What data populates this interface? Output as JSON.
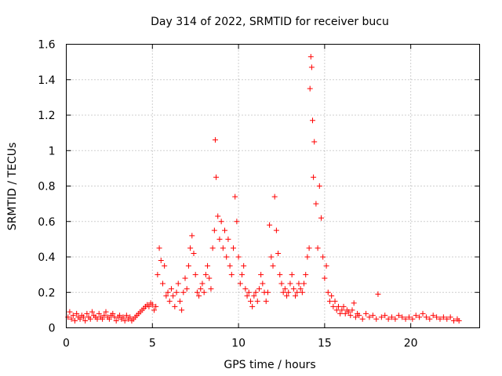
{
  "chart_data": {
    "type": "scatter",
    "title": "Day 314 of 2022, SRMTID for receiver bucu",
    "xlabel": "GPS time / hours",
    "ylabel": "SRMTID / TECUs",
    "xlim": [
      0,
      24
    ],
    "ylim": [
      0,
      1.6
    ],
    "xticks": [
      0,
      5,
      10,
      15,
      20
    ],
    "xtick_labels": [
      "0",
      "5",
      "10",
      "15",
      "20"
    ],
    "yticks": [
      0,
      0.2,
      0.4,
      0.6,
      0.8,
      1,
      1.2,
      1.4,
      1.6
    ],
    "ytick_labels": [
      "0",
      "0.2",
      "0.4",
      "0.6",
      "0.8",
      "1",
      "1.2",
      "1.4",
      "1.6"
    ],
    "grid": true,
    "marker": "+",
    "color": "#ff0000",
    "series": [
      {
        "name": "SRMTID",
        "points": [
          [
            0.1,
            0.06
          ],
          [
            0.2,
            0.09
          ],
          [
            0.3,
            0.05
          ],
          [
            0.4,
            0.07
          ],
          [
            0.5,
            0.04
          ],
          [
            0.6,
            0.08
          ],
          [
            0.7,
            0.06
          ],
          [
            0.8,
            0.05
          ],
          [
            0.9,
            0.07
          ],
          [
            1.0,
            0.06
          ],
          [
            1.1,
            0.04
          ],
          [
            1.2,
            0.08
          ],
          [
            1.3,
            0.06
          ],
          [
            1.4,
            0.05
          ],
          [
            1.5,
            0.09
          ],
          [
            1.6,
            0.07
          ],
          [
            1.7,
            0.06
          ],
          [
            1.8,
            0.05
          ],
          [
            1.9,
            0.08
          ],
          [
            2.0,
            0.06
          ],
          [
            2.1,
            0.05
          ],
          [
            2.2,
            0.07
          ],
          [
            2.3,
            0.09
          ],
          [
            2.4,
            0.06
          ],
          [
            2.5,
            0.05
          ],
          [
            2.6,
            0.07
          ],
          [
            2.7,
            0.08
          ],
          [
            2.8,
            0.06
          ],
          [
            2.9,
            0.04
          ],
          [
            3.0,
            0.06
          ],
          [
            3.1,
            0.07
          ],
          [
            3.2,
            0.05
          ],
          [
            3.3,
            0.06
          ],
          [
            3.4,
            0.04
          ],
          [
            3.5,
            0.07
          ],
          [
            3.6,
            0.05
          ],
          [
            3.7,
            0.06
          ],
          [
            3.8,
            0.04
          ],
          [
            3.9,
            0.05
          ],
          [
            4.0,
            0.06
          ],
          [
            4.1,
            0.07
          ],
          [
            4.2,
            0.08
          ],
          [
            4.3,
            0.09
          ],
          [
            4.4,
            0.1
          ],
          [
            4.5,
            0.11
          ],
          [
            4.6,
            0.12
          ],
          [
            4.7,
            0.13
          ],
          [
            4.8,
            0.12
          ],
          [
            4.9,
            0.14
          ],
          [
            5.0,
            0.13
          ],
          [
            5.1,
            0.1
          ],
          [
            5.2,
            0.12
          ],
          [
            5.3,
            0.3
          ],
          [
            5.4,
            0.45
          ],
          [
            5.5,
            0.38
          ],
          [
            5.6,
            0.25
          ],
          [
            5.7,
            0.35
          ],
          [
            5.8,
            0.18
          ],
          [
            5.9,
            0.2
          ],
          [
            6.0,
            0.15
          ],
          [
            6.1,
            0.22
          ],
          [
            6.2,
            0.18
          ],
          [
            6.3,
            0.12
          ],
          [
            6.4,
            0.2
          ],
          [
            6.5,
            0.25
          ],
          [
            6.6,
            0.15
          ],
          [
            6.7,
            0.1
          ],
          [
            6.8,
            0.2
          ],
          [
            6.9,
            0.28
          ],
          [
            7.0,
            0.22
          ],
          [
            7.1,
            0.35
          ],
          [
            7.2,
            0.45
          ],
          [
            7.3,
            0.52
          ],
          [
            7.4,
            0.42
          ],
          [
            7.5,
            0.3
          ],
          [
            7.6,
            0.2
          ],
          [
            7.7,
            0.18
          ],
          [
            7.8,
            0.22
          ],
          [
            7.9,
            0.25
          ],
          [
            8.0,
            0.2
          ],
          [
            8.1,
            0.3
          ],
          [
            8.2,
            0.35
          ],
          [
            8.3,
            0.28
          ],
          [
            8.4,
            0.22
          ],
          [
            8.5,
            0.45
          ],
          [
            8.6,
            0.55
          ],
          [
            8.65,
            1.06
          ],
          [
            8.7,
            0.85
          ],
          [
            8.8,
            0.63
          ],
          [
            8.9,
            0.5
          ],
          [
            9.0,
            0.6
          ],
          [
            9.1,
            0.45
          ],
          [
            9.2,
            0.55
          ],
          [
            9.3,
            0.4
          ],
          [
            9.4,
            0.5
          ],
          [
            9.5,
            0.35
          ],
          [
            9.6,
            0.3
          ],
          [
            9.7,
            0.45
          ],
          [
            9.8,
            0.74
          ],
          [
            9.9,
            0.6
          ],
          [
            10.0,
            0.4
          ],
          [
            10.1,
            0.25
          ],
          [
            10.2,
            0.3
          ],
          [
            10.3,
            0.35
          ],
          [
            10.4,
            0.22
          ],
          [
            10.5,
            0.18
          ],
          [
            10.6,
            0.2
          ],
          [
            10.7,
            0.15
          ],
          [
            10.8,
            0.12
          ],
          [
            10.9,
            0.18
          ],
          [
            11.0,
            0.2
          ],
          [
            11.1,
            0.15
          ],
          [
            11.2,
            0.22
          ],
          [
            11.3,
            0.3
          ],
          [
            11.4,
            0.25
          ],
          [
            11.5,
            0.2
          ],
          [
            11.6,
            0.15
          ],
          [
            11.7,
            0.2
          ],
          [
            11.8,
            0.58
          ],
          [
            11.9,
            0.4
          ],
          [
            12.0,
            0.35
          ],
          [
            12.1,
            0.74
          ],
          [
            12.2,
            0.55
          ],
          [
            12.3,
            0.42
          ],
          [
            12.4,
            0.3
          ],
          [
            12.5,
            0.25
          ],
          [
            12.6,
            0.2
          ],
          [
            12.7,
            0.22
          ],
          [
            12.8,
            0.18
          ],
          [
            12.9,
            0.2
          ],
          [
            13.0,
            0.25
          ],
          [
            13.1,
            0.3
          ],
          [
            13.2,
            0.22
          ],
          [
            13.3,
            0.18
          ],
          [
            13.4,
            0.2
          ],
          [
            13.5,
            0.25
          ],
          [
            13.6,
            0.22
          ],
          [
            13.7,
            0.2
          ],
          [
            13.8,
            0.25
          ],
          [
            13.9,
            0.3
          ],
          [
            14.0,
            0.4
          ],
          [
            14.1,
            0.45
          ],
          [
            14.15,
            1.35
          ],
          [
            14.2,
            1.53
          ],
          [
            14.25,
            1.47
          ],
          [
            14.3,
            1.17
          ],
          [
            14.35,
            0.85
          ],
          [
            14.4,
            1.05
          ],
          [
            14.5,
            0.7
          ],
          [
            14.6,
            0.45
          ],
          [
            14.7,
            0.8
          ],
          [
            14.8,
            0.62
          ],
          [
            14.9,
            0.4
          ],
          [
            15.0,
            0.28
          ],
          [
            15.1,
            0.35
          ],
          [
            15.2,
            0.2
          ],
          [
            15.3,
            0.15
          ],
          [
            15.4,
            0.18
          ],
          [
            15.5,
            0.12
          ],
          [
            15.6,
            0.15
          ],
          [
            15.7,
            0.1
          ],
          [
            15.8,
            0.12
          ],
          [
            15.9,
            0.08
          ],
          [
            16.0,
            0.1
          ],
          [
            16.1,
            0.12
          ],
          [
            16.2,
            0.08
          ],
          [
            16.3,
            0.1
          ],
          [
            16.4,
            0.09
          ],
          [
            16.5,
            0.07
          ],
          [
            16.6,
            0.1
          ],
          [
            16.7,
            0.14
          ],
          [
            16.8,
            0.06
          ],
          [
            16.9,
            0.08
          ],
          [
            17.0,
            0.07
          ],
          [
            17.2,
            0.05
          ],
          [
            17.4,
            0.08
          ],
          [
            17.6,
            0.06
          ],
          [
            17.8,
            0.07
          ],
          [
            18.0,
            0.05
          ],
          [
            18.1,
            0.19
          ],
          [
            18.3,
            0.06
          ],
          [
            18.5,
            0.07
          ],
          [
            18.7,
            0.05
          ],
          [
            18.9,
            0.06
          ],
          [
            19.1,
            0.05
          ],
          [
            19.3,
            0.07
          ],
          [
            19.5,
            0.06
          ],
          [
            19.7,
            0.05
          ],
          [
            19.9,
            0.06
          ],
          [
            20.1,
            0.05
          ],
          [
            20.3,
            0.07
          ],
          [
            20.5,
            0.06
          ],
          [
            20.7,
            0.08
          ],
          [
            20.9,
            0.06
          ],
          [
            21.1,
            0.05
          ],
          [
            21.3,
            0.07
          ],
          [
            21.5,
            0.06
          ],
          [
            21.7,
            0.05
          ],
          [
            21.9,
            0.06
          ],
          [
            22.1,
            0.05
          ],
          [
            22.3,
            0.06
          ],
          [
            22.5,
            0.04
          ],
          [
            22.7,
            0.05
          ],
          [
            22.8,
            0.04
          ]
        ]
      }
    ]
  }
}
